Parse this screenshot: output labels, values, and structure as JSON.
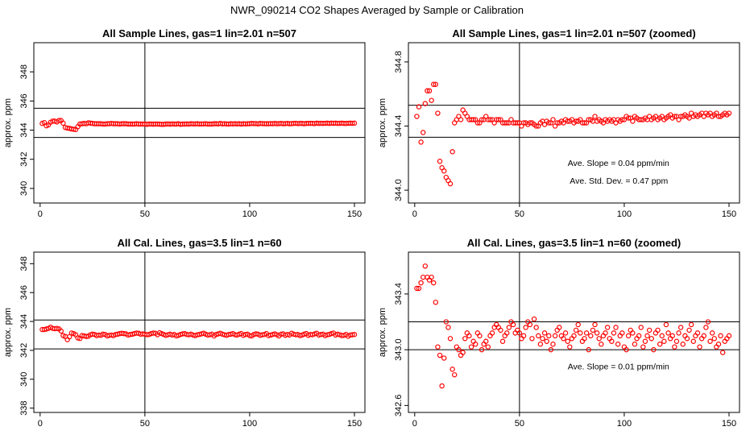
{
  "page_title": "NWR_090214  CO2 Shapes Averaged by Sample or Calibration",
  "colors": {
    "points": "#ff0000",
    "axes": "#000000",
    "background": "#ffffff"
  },
  "chart_data": [
    {
      "type": "scatter",
      "title": "All Sample Lines, gas=1 lin=2.01 n=507",
      "xlabel": "",
      "ylabel": "approx. ppm",
      "xlim": [
        -3,
        155
      ],
      "ylim": [
        339.0,
        350.0
      ],
      "x_ticks": [
        0,
        50,
        100,
        150
      ],
      "y_ticks": [
        340,
        342,
        344,
        346,
        348
      ],
      "hlines": [
        343.5,
        345.5
      ],
      "vline": 50,
      "annotations": [],
      "x": [
        1,
        2,
        3,
        4,
        5,
        6,
        7,
        8,
        9,
        10,
        11,
        12,
        13,
        14,
        15,
        16,
        17,
        18,
        19,
        20,
        21,
        22,
        23,
        24,
        25,
        26,
        27,
        28,
        29,
        30,
        31,
        32,
        33,
        34,
        35,
        36,
        37,
        38,
        39,
        40,
        41,
        42,
        43,
        44,
        45,
        46,
        47,
        48,
        49,
        50,
        51,
        52,
        53,
        54,
        55,
        56,
        57,
        58,
        59,
        60,
        61,
        62,
        63,
        64,
        65,
        66,
        67,
        68,
        69,
        70,
        71,
        72,
        73,
        74,
        75,
        76,
        77,
        78,
        79,
        80,
        81,
        82,
        83,
        84,
        85,
        86,
        87,
        88,
        89,
        90,
        91,
        92,
        93,
        94,
        95,
        96,
        97,
        98,
        99,
        100,
        101,
        102,
        103,
        104,
        105,
        106,
        107,
        108,
        109,
        110,
        111,
        112,
        113,
        114,
        115,
        116,
        117,
        118,
        119,
        120,
        121,
        122,
        123,
        124,
        125,
        126,
        127,
        128,
        129,
        130,
        131,
        132,
        133,
        134,
        135,
        136,
        137,
        138,
        139,
        140,
        141,
        142,
        143,
        144,
        145,
        146,
        147,
        148,
        149,
        150
      ],
      "y": [
        344.46,
        344.52,
        344.3,
        344.36,
        344.54,
        344.62,
        344.62,
        344.56,
        344.66,
        344.66,
        344.48,
        344.18,
        344.14,
        344.12,
        344.08,
        344.06,
        344.04,
        344.24,
        344.42,
        344.44,
        344.46,
        344.44,
        344.5,
        344.48,
        344.46,
        344.44,
        344.44,
        344.44,
        344.44,
        344.42,
        344.42,
        344.44,
        344.44,
        344.46,
        344.44,
        344.44,
        344.44,
        344.42,
        344.44,
        344.44,
        344.44,
        344.42,
        344.42,
        344.42,
        344.42,
        344.44,
        344.42,
        344.42,
        344.42,
        344.42,
        344.4,
        344.42,
        344.42,
        344.41,
        344.42,
        344.42,
        344.41,
        344.4,
        344.4,
        344.42,
        344.43,
        344.41,
        344.43,
        344.42,
        344.42,
        344.44,
        344.4,
        344.42,
        344.42,
        344.43,
        344.42,
        344.44,
        344.43,
        344.43,
        344.44,
        344.42,
        344.43,
        344.43,
        344.44,
        344.42,
        344.42,
        344.42,
        344.44,
        344.44,
        344.43,
        344.46,
        344.43,
        344.44,
        344.43,
        344.42,
        344.44,
        344.43,
        344.44,
        344.43,
        344.44,
        344.42,
        344.44,
        344.43,
        344.44,
        344.44,
        344.46,
        344.45,
        344.45,
        344.43,
        344.46,
        344.45,
        344.44,
        344.44,
        344.44,
        344.45,
        344.44,
        344.46,
        344.44,
        344.45,
        344.46,
        344.44,
        344.45,
        344.46,
        344.44,
        344.45,
        344.46,
        344.47,
        344.45,
        344.46,
        344.46,
        344.44,
        344.46,
        344.46,
        344.47,
        344.46,
        344.45,
        344.48,
        344.46,
        344.47,
        344.46,
        344.47,
        344.48,
        344.46,
        344.48,
        344.47,
        344.48,
        344.46,
        344.47,
        344.48,
        344.46,
        344.46,
        344.47,
        344.48,
        344.47,
        344.48
      ]
    },
    {
      "type": "scatter",
      "title": "All Sample Lines, gas=1 lin=2.01 n=507 (zoomed)",
      "xlabel": "",
      "ylabel": "approx. ppm",
      "xlim": [
        -3,
        155
      ],
      "ylim": [
        343.92,
        344.92
      ],
      "x_ticks": [
        0,
        50,
        100,
        150
      ],
      "y_ticks": [
        344.0,
        344.4,
        344.8
      ],
      "hlines": [
        344.33,
        344.53
      ],
      "vline": 50,
      "annotations": [
        {
          "text": "Ave. Slope =  0.04  ppm/min",
          "x": 73,
          "y": 344.15
        },
        {
          "text": "Ave. Std. Dev. =  0.47  ppm",
          "x": 74,
          "y": 344.04
        }
      ],
      "x": [
        1,
        2,
        3,
        4,
        5,
        6,
        7,
        8,
        9,
        10,
        11,
        12,
        13,
        14,
        15,
        16,
        17,
        18,
        19,
        20,
        21,
        22,
        23,
        24,
        25,
        26,
        27,
        28,
        29,
        30,
        31,
        32,
        33,
        34,
        35,
        36,
        37,
        38,
        39,
        40,
        41,
        42,
        43,
        44,
        45,
        46,
        47,
        48,
        49,
        50,
        51,
        52,
        53,
        54,
        55,
        56,
        57,
        58,
        59,
        60,
        61,
        62,
        63,
        64,
        65,
        66,
        67,
        68,
        69,
        70,
        71,
        72,
        73,
        74,
        75,
        76,
        77,
        78,
        79,
        80,
        81,
        82,
        83,
        84,
        85,
        86,
        87,
        88,
        89,
        90,
        91,
        92,
        93,
        94,
        95,
        96,
        97,
        98,
        99,
        100,
        101,
        102,
        103,
        104,
        105,
        106,
        107,
        108,
        109,
        110,
        111,
        112,
        113,
        114,
        115,
        116,
        117,
        118,
        119,
        120,
        121,
        122,
        123,
        124,
        125,
        126,
        127,
        128,
        129,
        130,
        131,
        132,
        133,
        134,
        135,
        136,
        137,
        138,
        139,
        140,
        141,
        142,
        143,
        144,
        145,
        146,
        147,
        148,
        149,
        150
      ],
      "y": [
        344.46,
        344.52,
        344.3,
        344.36,
        344.54,
        344.62,
        344.62,
        344.56,
        344.66,
        344.66,
        344.48,
        344.18,
        344.14,
        344.12,
        344.08,
        344.06,
        344.04,
        344.24,
        344.42,
        344.44,
        344.46,
        344.44,
        344.5,
        344.48,
        344.46,
        344.44,
        344.44,
        344.44,
        344.44,
        344.42,
        344.42,
        344.44,
        344.44,
        344.46,
        344.44,
        344.44,
        344.44,
        344.42,
        344.44,
        344.44,
        344.44,
        344.42,
        344.42,
        344.42,
        344.42,
        344.44,
        344.42,
        344.42,
        344.42,
        344.42,
        344.4,
        344.42,
        344.42,
        344.41,
        344.42,
        344.42,
        344.41,
        344.4,
        344.4,
        344.42,
        344.43,
        344.41,
        344.43,
        344.42,
        344.42,
        344.44,
        344.4,
        344.42,
        344.42,
        344.43,
        344.42,
        344.44,
        344.43,
        344.43,
        344.44,
        344.42,
        344.43,
        344.43,
        344.44,
        344.42,
        344.42,
        344.42,
        344.44,
        344.44,
        344.43,
        344.46,
        344.43,
        344.44,
        344.43,
        344.42,
        344.44,
        344.43,
        344.44,
        344.43,
        344.44,
        344.42,
        344.44,
        344.43,
        344.44,
        344.44,
        344.46,
        344.45,
        344.45,
        344.43,
        344.46,
        344.45,
        344.44,
        344.44,
        344.44,
        344.45,
        344.44,
        344.46,
        344.44,
        344.45,
        344.46,
        344.44,
        344.45,
        344.46,
        344.44,
        344.45,
        344.46,
        344.47,
        344.45,
        344.46,
        344.46,
        344.44,
        344.46,
        344.46,
        344.47,
        344.46,
        344.45,
        344.48,
        344.46,
        344.47,
        344.46,
        344.47,
        344.48,
        344.46,
        344.48,
        344.47,
        344.48,
        344.46,
        344.47,
        344.48,
        344.46,
        344.46,
        344.47,
        344.48,
        344.47,
        344.48
      ]
    },
    {
      "type": "scatter",
      "title": "All Cal. Lines, gas=3.5 lin=1 n=60",
      "xlabel": "",
      "ylabel": "approx. ppm",
      "xlim": [
        -3,
        155
      ],
      "ylim": [
        337.7,
        348.8
      ],
      "x_ticks": [
        0,
        50,
        100,
        150
      ],
      "y_ticks": [
        338,
        340,
        342,
        344,
        346,
        348
      ],
      "hlines": [
        342.1,
        344.1
      ],
      "vline": 50,
      "annotations": [],
      "x": [
        1,
        2,
        3,
        4,
        5,
        6,
        7,
        8,
        9,
        10,
        11,
        12,
        13,
        14,
        15,
        16,
        17,
        18,
        19,
        20,
        21,
        22,
        23,
        24,
        25,
        26,
        27,
        28,
        29,
        30,
        31,
        32,
        33,
        34,
        35,
        36,
        37,
        38,
        39,
        40,
        41,
        42,
        43,
        44,
        45,
        46,
        47,
        48,
        49,
        50,
        51,
        52,
        53,
        54,
        55,
        56,
        57,
        58,
        59,
        60,
        61,
        62,
        63,
        64,
        65,
        66,
        67,
        68,
        69,
        70,
        71,
        72,
        73,
        74,
        75,
        76,
        77,
        78,
        79,
        80,
        81,
        82,
        83,
        84,
        85,
        86,
        87,
        88,
        89,
        90,
        91,
        92,
        93,
        94,
        95,
        96,
        97,
        98,
        99,
        100,
        101,
        102,
        103,
        104,
        105,
        106,
        107,
        108,
        109,
        110,
        111,
        112,
        113,
        114,
        115,
        116,
        117,
        118,
        119,
        120,
        121,
        122,
        123,
        124,
        125,
        126,
        127,
        128,
        129,
        130,
        131,
        132,
        133,
        134,
        135,
        136,
        137,
        138,
        139,
        140,
        141,
        142,
        143,
        144,
        145,
        146,
        147,
        148,
        149,
        150
      ],
      "y": [
        343.44,
        343.44,
        343.48,
        343.52,
        343.6,
        343.52,
        343.5,
        343.52,
        343.48,
        343.34,
        343.02,
        342.96,
        342.74,
        342.94,
        343.2,
        343.16,
        343.08,
        342.86,
        342.82,
        343.02,
        343.0,
        342.96,
        342.98,
        343.08,
        343.12,
        343.1,
        343.02,
        343.06,
        343.04,
        343.12,
        343.1,
        343.0,
        343.04,
        343.06,
        343.02,
        343.1,
        343.12,
        343.16,
        343.18,
        343.16,
        343.14,
        343.06,
        343.1,
        343.12,
        343.16,
        343.2,
        343.18,
        343.12,
        343.14,
        343.12,
        343.08,
        343.1,
        343.16,
        343.2,
        343.18,
        343.08,
        343.22,
        343.16,
        343.1,
        343.04,
        343.08,
        343.12,
        343.06,
        343.1,
        343.0,
        343.04,
        343.1,
        343.14,
        343.16,
        343.1,
        343.08,
        343.12,
        343.06,
        343.02,
        343.08,
        343.1,
        343.14,
        343.18,
        343.12,
        343.06,
        343.08,
        343.12,
        343.0,
        343.1,
        343.14,
        343.18,
        343.12,
        343.08,
        343.04,
        343.1,
        343.12,
        343.16,
        343.08,
        343.06,
        343.12,
        343.16,
        343.04,
        343.1,
        343.12,
        343.02,
        343.0,
        343.1,
        343.14,
        343.12,
        343.04,
        343.08,
        343.1,
        343.16,
        343.02,
        343.06,
        343.1,
        343.14,
        343.08,
        343.0,
        343.12,
        343.14,
        343.04,
        343.1,
        343.06,
        343.18,
        343.12,
        343.08,
        343.1,
        343.02,
        343.06,
        343.12,
        343.16,
        343.04,
        343.1,
        343.08,
        343.14,
        343.18,
        343.06,
        343.1,
        343.12,
        343.02,
        343.08,
        343.1,
        343.16,
        343.2,
        343.06,
        343.12,
        343.08,
        343.02,
        343.04,
        343.1,
        342.98,
        343.06,
        343.08,
        343.1
      ]
    },
    {
      "type": "scatter",
      "title": "All Cal. Lines, gas=3.5 lin=1 n=60 (zoomed)",
      "xlabel": "",
      "ylabel": "approx. ppm",
      "xlim": [
        -3,
        155
      ],
      "ylim": [
        342.55,
        343.7
      ],
      "x_ticks": [
        0,
        50,
        100,
        150
      ],
      "y_ticks": [
        342.6,
        343.0,
        343.4
      ],
      "hlines": [
        343.0,
        343.2
      ],
      "vline": 50,
      "annotations": [
        {
          "text": "Ave. Slope =  0.01  ppm/min",
          "x": 73,
          "y": 342.86
        }
      ],
      "x": [
        1,
        2,
        3,
        4,
        5,
        6,
        7,
        8,
        9,
        10,
        11,
        12,
        13,
        14,
        15,
        16,
        17,
        18,
        19,
        20,
        21,
        22,
        23,
        24,
        25,
        26,
        27,
        28,
        29,
        30,
        31,
        32,
        33,
        34,
        35,
        36,
        37,
        38,
        39,
        40,
        41,
        42,
        43,
        44,
        45,
        46,
        47,
        48,
        49,
        50,
        51,
        52,
        53,
        54,
        55,
        56,
        57,
        58,
        59,
        60,
        61,
        62,
        63,
        64,
        65,
        66,
        67,
        68,
        69,
        70,
        71,
        72,
        73,
        74,
        75,
        76,
        77,
        78,
        79,
        80,
        81,
        82,
        83,
        84,
        85,
        86,
        87,
        88,
        89,
        90,
        91,
        92,
        93,
        94,
        95,
        96,
        97,
        98,
        99,
        100,
        101,
        102,
        103,
        104,
        105,
        106,
        107,
        108,
        109,
        110,
        111,
        112,
        113,
        114,
        115,
        116,
        117,
        118,
        119,
        120,
        121,
        122,
        123,
        124,
        125,
        126,
        127,
        128,
        129,
        130,
        131,
        132,
        133,
        134,
        135,
        136,
        137,
        138,
        139,
        140,
        141,
        142,
        143,
        144,
        145,
        146,
        147,
        148,
        149,
        150
      ],
      "y": [
        343.44,
        343.44,
        343.48,
        343.52,
        343.6,
        343.52,
        343.5,
        343.52,
        343.48,
        343.34,
        343.02,
        342.96,
        342.74,
        342.94,
        343.2,
        343.16,
        343.08,
        342.86,
        342.82,
        343.02,
        343.0,
        342.96,
        342.98,
        343.08,
        343.12,
        343.1,
        343.02,
        343.06,
        343.04,
        343.12,
        343.1,
        343.0,
        343.04,
        343.06,
        343.02,
        343.1,
        343.12,
        343.16,
        343.18,
        343.16,
        343.14,
        343.06,
        343.1,
        343.12,
        343.16,
        343.2,
        343.18,
        343.12,
        343.14,
        343.12,
        343.08,
        343.1,
        343.16,
        343.2,
        343.18,
        343.08,
        343.22,
        343.16,
        343.1,
        343.04,
        343.08,
        343.12,
        343.06,
        343.1,
        343.0,
        343.04,
        343.1,
        343.14,
        343.16,
        343.1,
        343.08,
        343.12,
        343.06,
        343.02,
        343.08,
        343.1,
        343.14,
        343.18,
        343.12,
        343.06,
        343.08,
        343.12,
        343.0,
        343.1,
        343.14,
        343.18,
        343.12,
        343.08,
        343.04,
        343.1,
        343.12,
        343.16,
        343.08,
        343.06,
        343.12,
        343.16,
        343.04,
        343.1,
        343.12,
        343.02,
        343.0,
        343.1,
        343.14,
        343.12,
        343.04,
        343.08,
        343.1,
        343.16,
        343.02,
        343.06,
        343.1,
        343.14,
        343.08,
        343.0,
        343.12,
        343.14,
        343.04,
        343.1,
        343.06,
        343.18,
        343.12,
        343.08,
        343.1,
        343.02,
        343.06,
        343.12,
        343.16,
        343.04,
        343.1,
        343.08,
        343.14,
        343.18,
        343.06,
        343.1,
        343.12,
        343.02,
        343.08,
        343.1,
        343.16,
        343.2,
        343.06,
        343.12,
        343.08,
        343.02,
        343.04,
        343.1,
        342.98,
        343.06,
        343.08,
        343.1
      ]
    }
  ]
}
